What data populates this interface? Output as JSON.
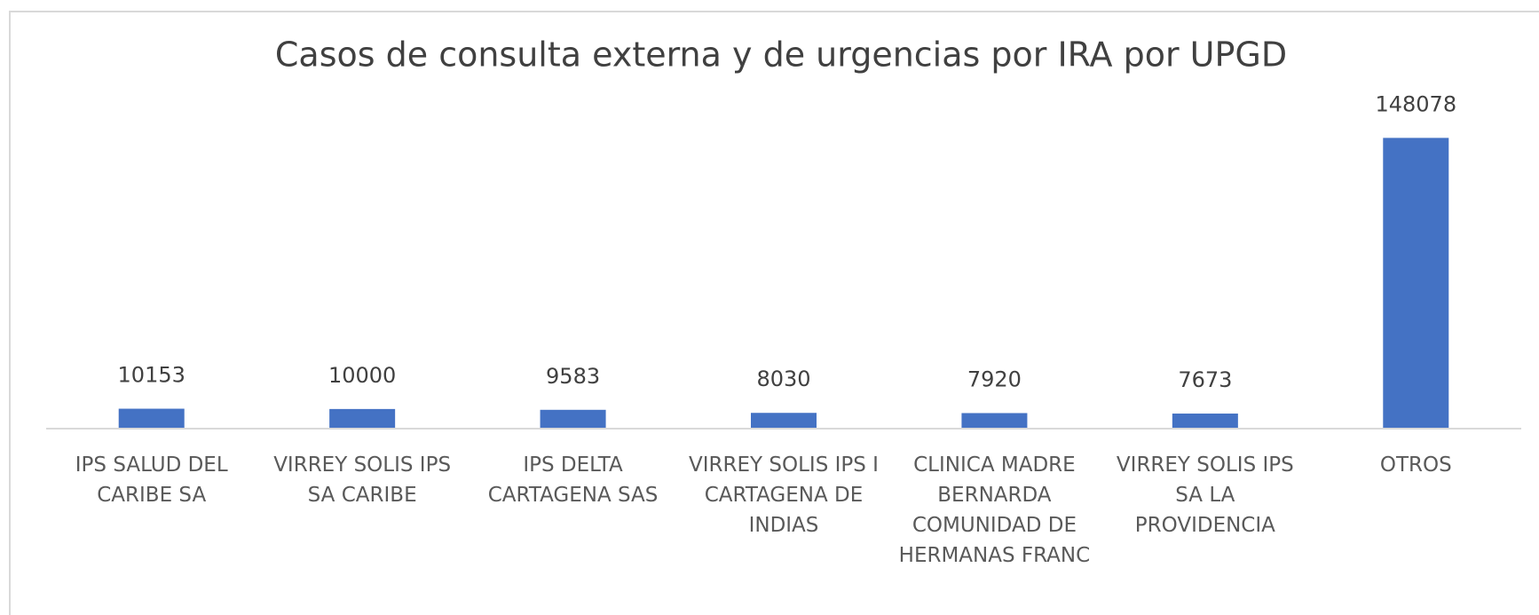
{
  "chart_data": {
    "type": "bar",
    "title": "Casos de consulta externa y de urgencias por IRA por UPGD",
    "categories": [
      "IPS SALUD DEL CARIBE SA",
      "VIRREY  SOLIS IPS SA CARIBE",
      "IPS DELTA CARTAGENA SAS",
      "VIRREY SOLIS IPS I CARTAGENA DE INDIAS",
      "CLINICA MADRE BERNARDA COMUNIDAD DE HERMANAS FRANC",
      "VIRREY SOLIS IPS SA LA PROVIDENCIA",
      "OTROS"
    ],
    "values": [
      10153,
      10000,
      9583,
      8030,
      7920,
      7673,
      148078
    ],
    "color": "#4472c4",
    "ylim": [
      0,
      160000
    ]
  }
}
